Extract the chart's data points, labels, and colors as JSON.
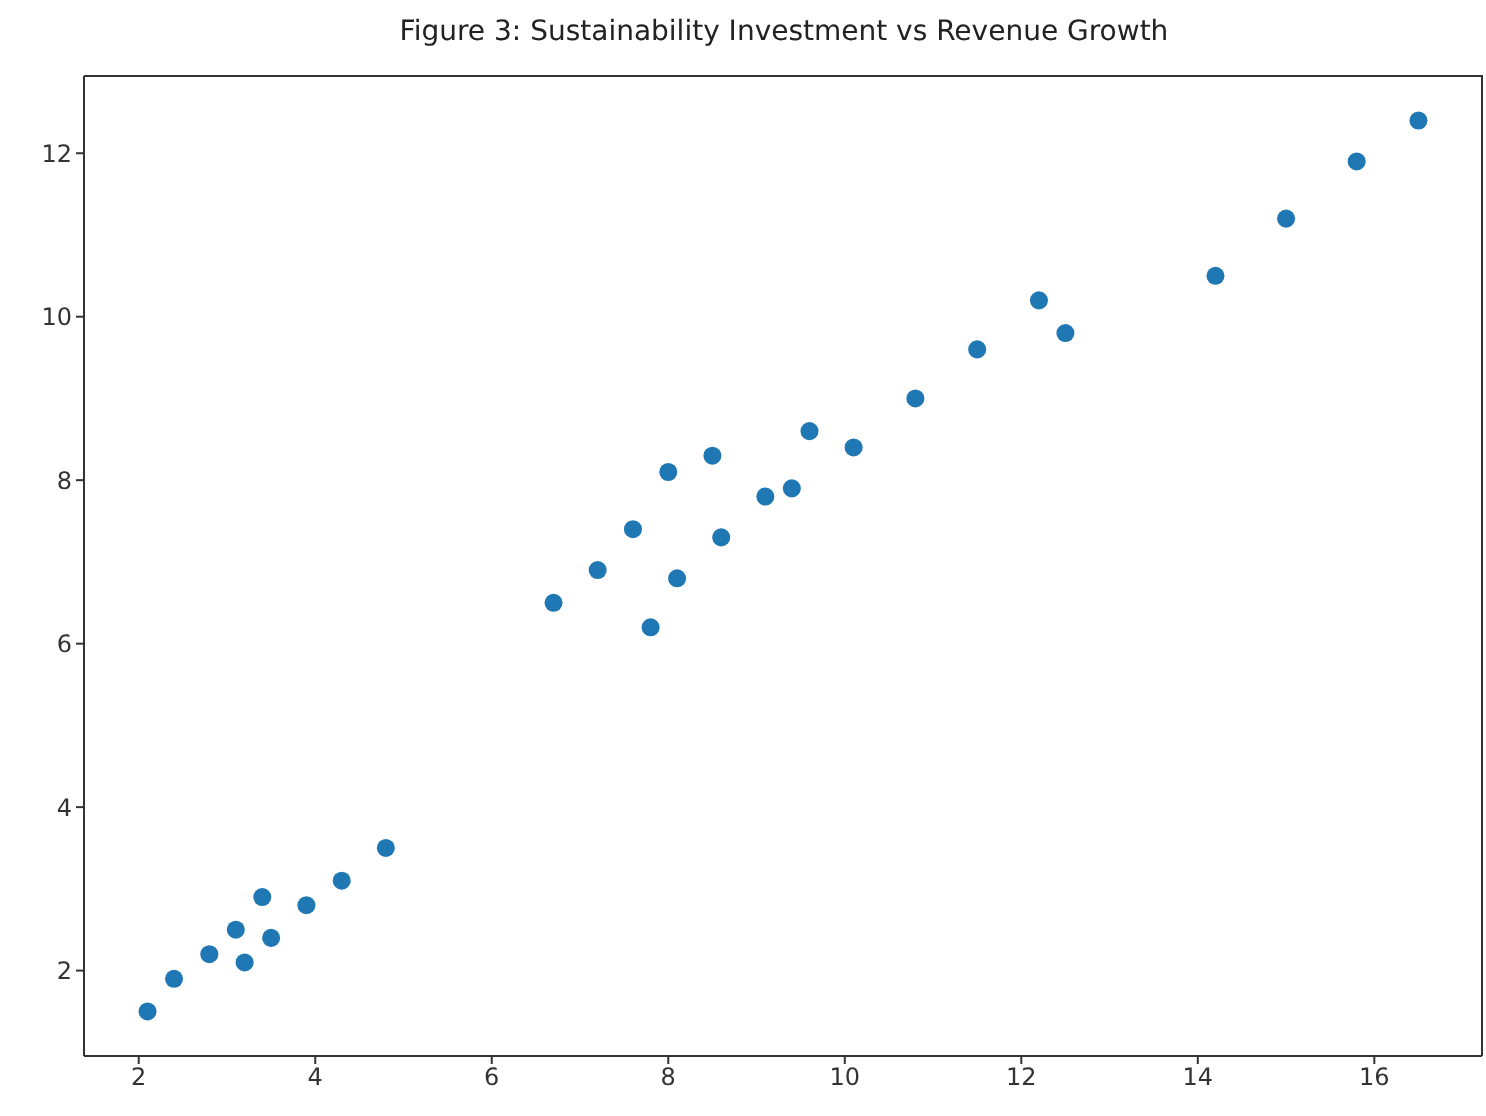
{
  "chart_data": {
    "type": "scatter",
    "title": "Figure 3: Sustainability Investment vs Revenue Growth",
    "x": [
      2.1,
      2.4,
      2.8,
      3.1,
      3.2,
      3.4,
      3.5,
      3.9,
      4.3,
      4.8,
      6.7,
      7.2,
      7.6,
      7.8,
      8.0,
      8.1,
      8.5,
      8.6,
      9.1,
      9.4,
      9.6,
      10.1,
      10.8,
      11.5,
      12.2,
      12.5,
      14.2,
      15.0,
      15.8,
      16.5
    ],
    "values": [
      1.5,
      1.9,
      2.2,
      2.5,
      2.1,
      2.9,
      2.4,
      2.8,
      3.1,
      3.5,
      6.5,
      6.9,
      7.4,
      6.2,
      8.1,
      6.8,
      8.3,
      7.3,
      7.8,
      7.9,
      8.6,
      8.4,
      9.0,
      9.6,
      10.2,
      9.8,
      10.5,
      11.2,
      11.9,
      12.4
    ],
    "color": "#1f77b4",
    "marker": "circle",
    "xlim": [
      1.38,
      17.22
    ],
    "xticks": [
      2,
      4,
      6,
      8,
      10,
      12,
      14,
      16
    ],
    "ylim": [
      0.955,
      12.945
    ],
    "yticks": [
      2,
      4,
      6,
      8,
      10,
      12
    ],
    "grid": false,
    "legend": false
  }
}
